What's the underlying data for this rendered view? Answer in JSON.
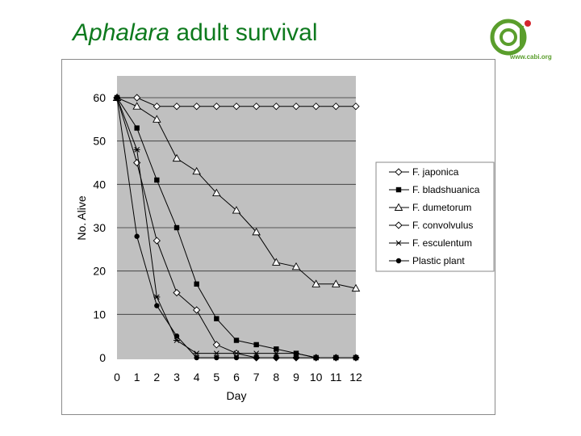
{
  "slide": {
    "title_italic": "Aphalara",
    "title_rest": " adult survival",
    "logo_url": "www.cabi.org"
  },
  "colors": {
    "title": "#0e7a1e",
    "plot_bg": "#c0c0c0",
    "logo_green": "#5a9e2c",
    "logo_red": "#d4262e"
  },
  "icons": {
    "logo": "cabi-logo-icon"
  },
  "chart_data": {
    "type": "line",
    "title": "",
    "xlabel": "Day",
    "ylabel": "No. Alive",
    "x": [
      0,
      1,
      2,
      3,
      4,
      5,
      6,
      7,
      8,
      9,
      10,
      11,
      12
    ],
    "xlim": [
      0,
      12
    ],
    "ylim": [
      0,
      60
    ],
    "yticks": [
      0,
      10,
      20,
      30,
      40,
      50,
      60
    ],
    "grid": "horizontal",
    "legend_position": "right",
    "series": [
      {
        "name": "F. japonica",
        "marker": "diamond-open",
        "values": [
          60,
          60,
          58,
          58,
          58,
          58,
          58,
          58,
          58,
          58,
          58,
          58,
          58
        ]
      },
      {
        "name": "F. bladshuanica",
        "marker": "square-filled",
        "values": [
          60,
          53,
          41,
          30,
          17,
          9,
          4,
          3,
          2,
          1,
          0,
          0,
          0
        ]
      },
      {
        "name": "F. dumetorum",
        "marker": "triangle-open",
        "values": [
          60,
          58,
          55,
          46,
          43,
          38,
          34,
          29,
          22,
          21,
          17,
          17,
          16
        ]
      },
      {
        "name": "F. convolvulus",
        "marker": "diamond-open",
        "values": [
          60,
          45,
          27,
          15,
          11,
          3,
          1,
          0,
          0,
          0,
          0,
          0,
          0
        ]
      },
      {
        "name": "F. esculentum",
        "marker": "star",
        "values": [
          60,
          48,
          14,
          4,
          1,
          1,
          1,
          1,
          1,
          1,
          0,
          0,
          0
        ]
      },
      {
        "name": "Plastic plant",
        "marker": "circle-filled",
        "values": [
          60,
          28,
          12,
          5,
          0,
          0,
          0,
          0,
          0,
          0,
          0,
          0,
          0
        ]
      }
    ]
  }
}
